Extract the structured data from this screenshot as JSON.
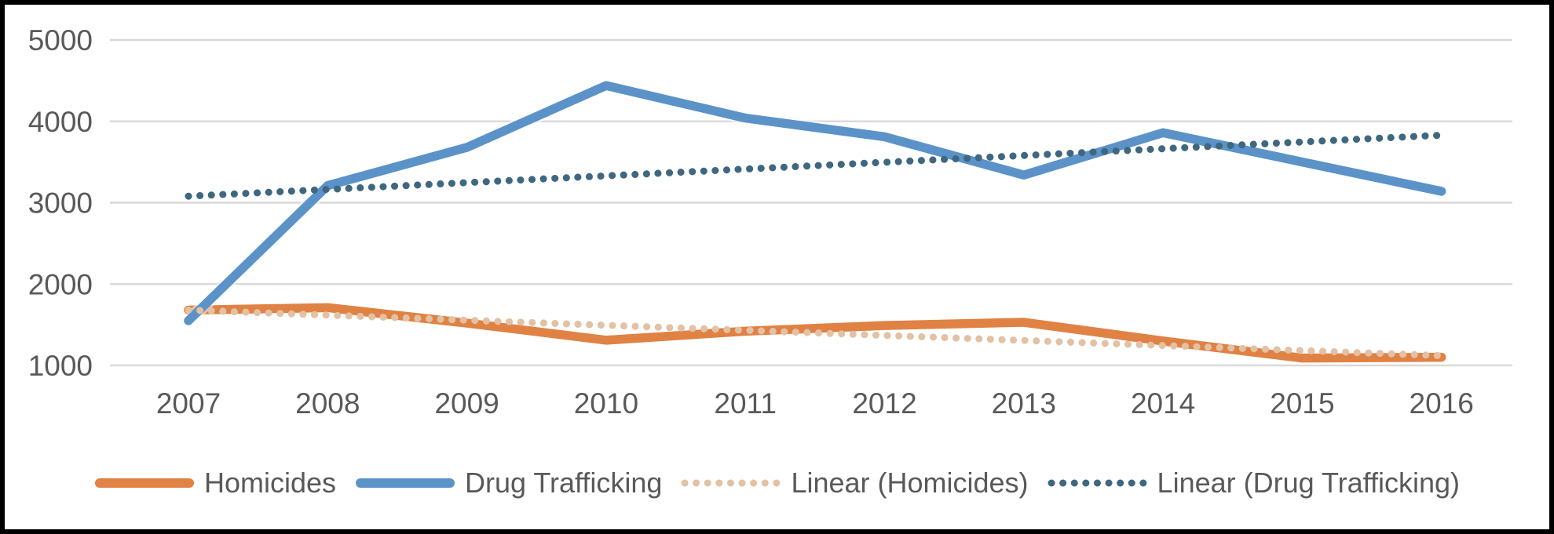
{
  "chart_data": {
    "type": "line",
    "title": "",
    "xlabel": "",
    "ylabel": "",
    "x": [
      2007,
      2008,
      2009,
      2010,
      2011,
      2012,
      2013,
      2014,
      2015,
      2016
    ],
    "y_ticks": [
      5000,
      4000,
      3000,
      2000,
      1000
    ],
    "ylim": [
      1000,
      5000
    ],
    "grid": "horizontal",
    "legend_position": "bottom",
    "series": [
      {
        "name": "Homicides",
        "style": "solid",
        "color": "#E08244",
        "values": [
          1680,
          1710,
          1520,
          1310,
          1420,
          1490,
          1530,
          1300,
          1090,
          1100
        ]
      },
      {
        "name": "Drug Trafficking",
        "style": "solid",
        "color": "#5B93C9",
        "values": [
          1550,
          3210,
          3680,
          4440,
          4040,
          3810,
          3340,
          3860,
          3500,
          3140
        ]
      },
      {
        "name": "Linear (Homicides)",
        "style": "dotted",
        "color": "#E2C1A4",
        "trend_of": "Homicides",
        "x_span": [
          2007,
          2016
        ],
        "values": [
          1680,
          1120
        ]
      },
      {
        "name": "Linear (Drug Trafficking)",
        "style": "dotted",
        "color": "#3F6780",
        "trend_of": "Drug Trafficking",
        "x_span": [
          2007,
          2016
        ],
        "values": [
          3080,
          3830
        ]
      }
    ]
  },
  "style": {
    "colors": {
      "grid": "#D9D9D9",
      "axis_text": "#595959",
      "background": "#FFFFFF",
      "border": "#000000"
    }
  }
}
